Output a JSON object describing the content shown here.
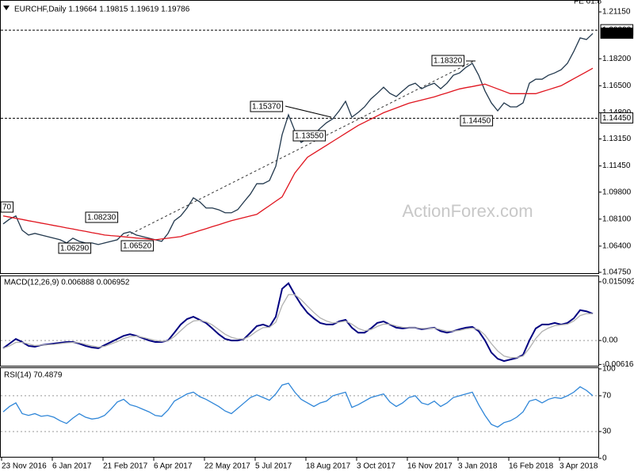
{
  "chart_data": [
    {
      "type": "line",
      "title": "EURCHF,Daily  1.19664 1.19815 1.19619 1.19786",
      "note": "FE 61.8",
      "watermark": "ActionForex.com",
      "ylim": [
        1.047,
        1.215
      ],
      "yticks": [
        {
          "value": 1.2115,
          "label": "1.21150"
        },
        {
          "value": 1.182,
          "label": "1.18200"
        },
        {
          "value": 1.165,
          "label": "1.16500"
        },
        {
          "value": 1.148,
          "label": "1.14800"
        },
        {
          "value": 1.1315,
          "label": "1.13150"
        },
        {
          "value": 1.1145,
          "label": "1.11450"
        },
        {
          "value": 1.098,
          "label": "1.09800"
        },
        {
          "value": 1.081,
          "label": "1.08100"
        },
        {
          "value": 1.064,
          "label": "1.06400"
        },
        {
          "value": 1.0475,
          "label": "1.04750"
        }
      ],
      "levels": [
        {
          "value": 1.2,
          "label": "1.20000"
        },
        {
          "value": 1.1445,
          "label": "1.14450"
        }
      ],
      "last": {
        "value": 1.19786,
        "label": "1.19786"
      },
      "annotations": [
        "70",
        "1.08230",
        "1.06290",
        "1.06520",
        "1.15370",
        "1.13550",
        "1.18320",
        "1.14450"
      ],
      "series": [
        {
          "color": "#22384d",
          "values": [
            1.078,
            1.081,
            1.083,
            1.074,
            1.071,
            1.072,
            1.071,
            1.07,
            1.069,
            1.068,
            1.066,
            1.069,
            1.067,
            1.066,
            1.066,
            1.065,
            1.066,
            1.067,
            1.068,
            1.072,
            1.073,
            1.071,
            1.07,
            1.069,
            1.068,
            1.067,
            1.072,
            1.08,
            1.083,
            1.088,
            1.0944,
            1.0919,
            1.088,
            1.088,
            1.0869,
            1.085,
            1.085,
            1.087,
            1.092,
            1.0968,
            1.1033,
            1.1033,
            1.1053,
            1.1143,
            1.1342,
            1.1467,
            1.1367,
            1.1293,
            1.1318,
            1.1342,
            1.1382,
            1.1417,
            1.1442,
            1.1492,
            1.1552,
            1.1452,
            1.1482,
            1.1517,
            1.1567,
            1.1602,
            1.1641,
            1.1602,
            1.1582,
            1.1617,
            1.1651,
            1.1666,
            1.1631,
            1.1651,
            1.1666,
            1.1631,
            1.1666,
            1.1716,
            1.1731,
            1.1766,
            1.1791,
            1.1716,
            1.1617,
            1.1542,
            1.1492,
            1.1542,
            1.1517,
            1.1517,
            1.1542,
            1.1666,
            1.1691,
            1.1691,
            1.1716,
            1.1731,
            1.1751,
            1.1791,
            1.1866,
            1.1951,
            1.1941,
            1.1979
          ]
        },
        {
          "color": "#e0141e",
          "values": [
            1.083,
            1.0823,
            1.0815,
            1.0808,
            1.08,
            1.0793,
            1.0785,
            1.0778,
            1.077,
            1.0763,
            1.0755,
            1.0748,
            1.074,
            1.0733,
            1.0725,
            1.0718,
            1.071,
            1.0706,
            1.0703,
            1.0699,
            1.0695,
            1.0691,
            1.0688,
            1.0684,
            1.068,
            1.0685,
            1.069,
            1.0695,
            1.07,
            1.0713,
            1.0725,
            1.0738,
            1.075,
            1.0763,
            1.0775,
            1.0788,
            1.08,
            1.081,
            1.082,
            1.083,
            1.084,
            1.0868,
            1.0895,
            1.0923,
            1.095,
            1.1025,
            1.11,
            1.115,
            1.12,
            1.1225,
            1.125,
            1.1275,
            1.13,
            1.1325,
            1.135,
            1.1375,
            1.14,
            1.142,
            1.144,
            1.146,
            1.148,
            1.1495,
            1.151,
            1.1525,
            1.154,
            1.155,
            1.156,
            1.157,
            1.158,
            1.1593,
            1.1605,
            1.1618,
            1.163,
            1.1638,
            1.1645,
            1.1653,
            1.166,
            1.1645,
            1.163,
            1.1615,
            1.16,
            1.16,
            1.16,
            1.16,
            1.16,
            1.1613,
            1.1625,
            1.1638,
            1.165,
            1.1672,
            1.1694,
            1.1716,
            1.1738,
            1.176
          ]
        }
      ]
    },
    {
      "type": "line",
      "title": "MACD(12,26,9) 0.006888 0.006952",
      "ylim": [
        -0.0065,
        0.0163
      ],
      "yticks": [
        0.015092,
        {
          "value": 0,
          "label": "0.00"
        },
        -0.006163
      ],
      "levels": [
        0
      ],
      "series": [
        {
          "color": "#000080",
          "values": [
            -0.002,
            -0.0008,
            0.0004,
            -0.0004,
            -0.0014,
            -0.0016,
            -0.0012,
            -0.001,
            -0.0008,
            -0.0006,
            -0.0004,
            -0.0004,
            -0.0008,
            -0.0014,
            -0.0018,
            -0.002,
            -0.0012,
            -0.0004,
            0.0004,
            0.0012,
            0.0016,
            0.0012,
            0.0006,
            0.0,
            -0.0004,
            -0.0004,
            0.0,
            0.002,
            0.0041,
            0.0055,
            0.0061,
            0.0053,
            0.0045,
            0.0031,
            0.0016,
            0.0004,
            0.0,
            0.0,
            0.0004,
            0.002,
            0.0037,
            0.0041,
            0.0035,
            0.0061,
            0.0133,
            0.0147,
            0.0118,
            0.0092,
            0.0071,
            0.0057,
            0.0045,
            0.0041,
            0.0041,
            0.0049,
            0.0053,
            0.0033,
            0.002,
            0.002,
            0.0031,
            0.0045,
            0.0049,
            0.0041,
            0.0033,
            0.0031,
            0.0033,
            0.0033,
            0.0029,
            0.0031,
            0.0033,
            0.0024,
            0.002,
            0.0024,
            0.0029,
            0.0033,
            0.0035,
            0.0024,
            0.0,
            -0.0031,
            -0.0047,
            -0.0053,
            -0.0049,
            -0.0045,
            -0.0037,
            0.0,
            0.0031,
            0.0041,
            0.0041,
            0.0045,
            0.0041,
            0.0045,
            0.0057,
            0.0078,
            0.0075,
            0.0069
          ]
        },
        {
          "color": "#b0b0b0",
          "values": [
            -0.002,
            -0.0014,
            -0.0005,
            -0.0005,
            -0.0009,
            -0.0013,
            -0.0012,
            -0.0011,
            -0.001,
            -0.0008,
            -0.0006,
            -0.0005,
            -0.0006,
            -0.001,
            -0.0014,
            -0.0017,
            -0.0015,
            -0.0009,
            -0.0003,
            0.0005,
            0.001,
            0.0011,
            0.0008,
            0.0004,
            0.0,
            -0.0002,
            -0.0001,
            0.001,
            0.0025,
            0.004,
            0.005,
            0.0052,
            0.0048,
            0.004,
            0.0028,
            0.0016,
            0.0008,
            0.0004,
            0.0004,
            0.0012,
            0.0024,
            0.0033,
            0.0034,
            0.0047,
            0.009,
            0.0118,
            0.0118,
            0.0105,
            0.0088,
            0.0072,
            0.0058,
            0.005,
            0.0045,
            0.0047,
            0.005,
            0.0042,
            0.0031,
            0.0025,
            0.0028,
            0.0036,
            0.0042,
            0.0042,
            0.0037,
            0.0034,
            0.0033,
            0.0033,
            0.0031,
            0.0031,
            0.0032,
            0.0028,
            0.0024,
            0.0024,
            0.0026,
            0.003,
            0.0032,
            0.0028,
            0.0014,
            -0.0008,
            -0.0027,
            -0.004,
            -0.0044,
            -0.0044,
            -0.004,
            -0.002,
            0.0005,
            0.0023,
            0.0032,
            0.0038,
            0.004,
            0.0042,
            0.005,
            0.0064,
            0.0069,
            0.0069
          ]
        }
      ]
    },
    {
      "type": "line",
      "title": "RSI(14) 70.4879",
      "ylim": [
        0,
        100
      ],
      "yticks": [
        100,
        70,
        30,
        0
      ],
      "levels": [
        70,
        30
      ],
      "categories": [
        "23 Nov 2016",
        null,
        null,
        null,
        null,
        null,
        null,
        null,
        "6 Jan 2017",
        null,
        null,
        null,
        null,
        null,
        null,
        null,
        "21 Feb 2017",
        null,
        null,
        null,
        null,
        null,
        null,
        null,
        "6 Apr 2017",
        null,
        null,
        null,
        null,
        null,
        null,
        null,
        "22 May 2017",
        null,
        null,
        null,
        null,
        null,
        null,
        null,
        "5 Jul 2017",
        null,
        null,
        null,
        null,
        null,
        null,
        null,
        "18 Aug 2017",
        null,
        null,
        null,
        null,
        null,
        null,
        null,
        "3 Oct 2017",
        null,
        null,
        null,
        null,
        null,
        null,
        null,
        "16 Nov 2017",
        null,
        null,
        null,
        null,
        null,
        null,
        null,
        "3 Jan 2018",
        null,
        null,
        null,
        null,
        null,
        null,
        null,
        "16 Feb 2018",
        null,
        null,
        null,
        null,
        null,
        null,
        null,
        "3 Apr 2018",
        null,
        null,
        null,
        null,
        null
      ],
      "series": [
        {
          "color": "#2f86d8",
          "values": [
            52,
            58,
            62,
            50,
            48,
            50,
            47,
            48,
            46,
            42,
            39,
            45,
            50,
            46,
            44,
            45,
            48,
            55,
            63,
            66,
            60,
            58,
            55,
            52,
            48,
            47,
            54,
            64,
            68,
            72,
            74,
            69,
            66,
            62,
            58,
            53,
            50,
            56,
            62,
            68,
            71,
            68,
            65,
            72,
            82,
            84,
            74,
            66,
            62,
            58,
            62,
            64,
            70,
            72,
            74,
            57,
            60,
            64,
            68,
            70,
            72,
            63,
            58,
            62,
            68,
            70,
            62,
            60,
            64,
            58,
            62,
            68,
            70,
            72,
            74,
            60,
            48,
            38,
            35,
            40,
            42,
            46,
            52,
            64,
            66,
            62,
            66,
            68,
            67,
            70,
            74,
            80,
            76,
            70
          ]
        }
      ]
    }
  ]
}
